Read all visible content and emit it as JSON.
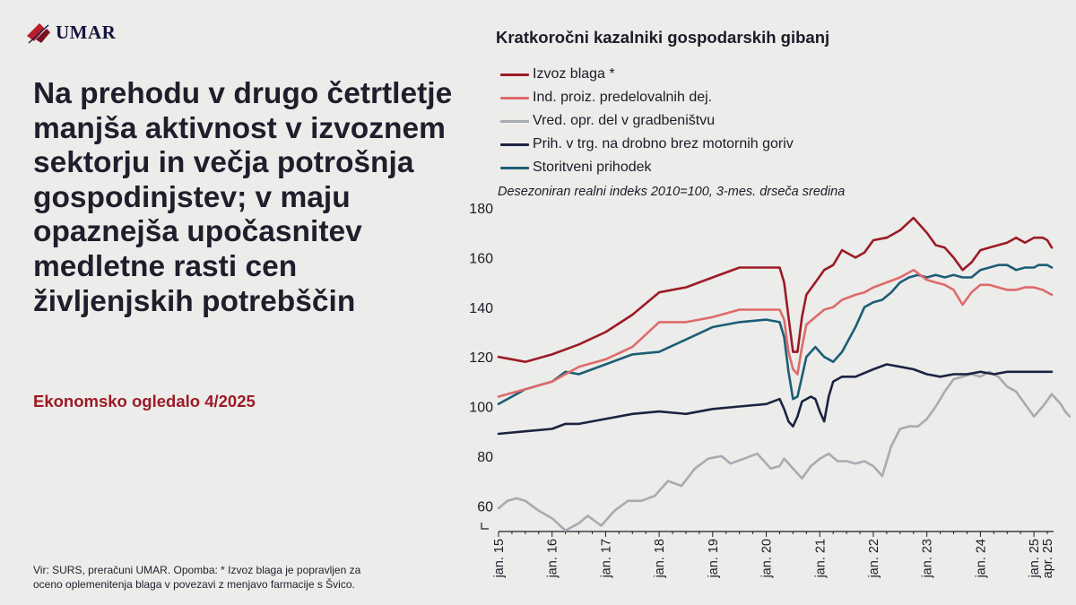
{
  "brand": {
    "logo_text": "UMAR"
  },
  "headline": "Na prehodu v drugo četrtletje manjša aktivnost v izvoznem sektorju in večja potrošnja gospodinjstev; v maju opaznejša upočasnitev medletne rasti cen življenjskih potrebščin",
  "subtitle": "Ekonomsko ogledalo 4/2025",
  "source": {
    "line1": "Vir: SURS, preračuni UMAR.  Opomba: * Izvoz blaga je popravljen za",
    "line2": "oceno oplemenitenja blaga v povezavi z menjavo farmacije s Švico."
  },
  "colors": {
    "izvoz": "#9b1b26",
    "ind": "#de6b6b",
    "vred": "#a7abb2",
    "prih": "#1c2342",
    "stor": "#1d5d75",
    "logo_red": "#b81e2d"
  },
  "chart_data": {
    "type": "line",
    "title": "Kratkoročni kazalniki gospodarskih gibanj",
    "note": "Desezoniran realni indeks 2010=100, 3-mes. drseča sredina",
    "ylim": [
      50,
      180
    ],
    "y_ticks": [
      60,
      80,
      100,
      120,
      140,
      160,
      180
    ],
    "x_start": "2015-01",
    "x_end": "2025-04",
    "x_tick_labels": [
      "jan. 15",
      "jan. 16",
      "jan. 17",
      "jan. 18",
      "jan. 19",
      "jan. 20",
      "jan. 21",
      "jan. 22",
      "jan. 23",
      "jan. 24",
      "jan. 25",
      "apr. 25"
    ],
    "grid": false,
    "legend_position": "top-left",
    "series": [
      {
        "key": "izvoz",
        "name": "Izvoz blaga *",
        "points": [
          [
            0,
            120
          ],
          [
            6,
            118
          ],
          [
            12,
            121
          ],
          [
            18,
            125
          ],
          [
            24,
            130
          ],
          [
            30,
            137
          ],
          [
            36,
            146
          ],
          [
            42,
            148
          ],
          [
            48,
            152
          ],
          [
            54,
            156
          ],
          [
            60,
            156
          ],
          [
            63,
            156
          ],
          [
            64,
            150
          ],
          [
            65,
            136
          ],
          [
            66,
            122
          ],
          [
            67,
            122
          ],
          [
            68,
            136
          ],
          [
            69,
            145
          ],
          [
            71,
            150
          ],
          [
            73,
            155
          ],
          [
            75,
            157
          ],
          [
            77,
            163
          ],
          [
            80,
            160
          ],
          [
            82,
            162
          ],
          [
            84,
            167
          ],
          [
            87,
            168
          ],
          [
            90,
            171
          ],
          [
            93,
            176
          ],
          [
            96,
            170
          ],
          [
            98,
            165
          ],
          [
            100,
            164
          ],
          [
            102,
            160
          ],
          [
            104,
            155
          ],
          [
            106,
            158
          ],
          [
            108,
            163
          ],
          [
            110,
            164
          ],
          [
            112,
            165
          ],
          [
            114,
            166
          ],
          [
            116,
            168
          ],
          [
            118,
            166
          ],
          [
            120,
            168
          ],
          [
            122,
            168
          ],
          [
            123,
            167
          ],
          [
            124,
            164
          ]
        ]
      },
      {
        "key": "ind",
        "name": "Ind. proiz. predelovalnih dej.",
        "points": [
          [
            0,
            104
          ],
          [
            6,
            107
          ],
          [
            12,
            110
          ],
          [
            18,
            116
          ],
          [
            24,
            119
          ],
          [
            30,
            124
          ],
          [
            36,
            134
          ],
          [
            42,
            134
          ],
          [
            48,
            136
          ],
          [
            54,
            139
          ],
          [
            60,
            139
          ],
          [
            63,
            139
          ],
          [
            64,
            135
          ],
          [
            65,
            122
          ],
          [
            66,
            115
          ],
          [
            67,
            113
          ],
          [
            68,
            124
          ],
          [
            69,
            133
          ],
          [
            71,
            136
          ],
          [
            73,
            139
          ],
          [
            75,
            140
          ],
          [
            77,
            143
          ],
          [
            80,
            145
          ],
          [
            82,
            146
          ],
          [
            84,
            148
          ],
          [
            87,
            150
          ],
          [
            90,
            152
          ],
          [
            93,
            155
          ],
          [
            96,
            151
          ],
          [
            98,
            150
          ],
          [
            100,
            149
          ],
          [
            102,
            147
          ],
          [
            104,
            141
          ],
          [
            106,
            146
          ],
          [
            108,
            149
          ],
          [
            110,
            149
          ],
          [
            112,
            148
          ],
          [
            114,
            147
          ],
          [
            116,
            147
          ],
          [
            118,
            148
          ],
          [
            120,
            148
          ],
          [
            122,
            147
          ],
          [
            123,
            146
          ],
          [
            124,
            145
          ]
        ]
      },
      {
        "key": "vred",
        "name": "Vred. opr. del v gradbeništvu",
        "points": [
          [
            0,
            59
          ],
          [
            2,
            62
          ],
          [
            4,
            63
          ],
          [
            6,
            62
          ],
          [
            9,
            58
          ],
          [
            12,
            55
          ],
          [
            15,
            50
          ],
          [
            18,
            53
          ],
          [
            20,
            56
          ],
          [
            23,
            52
          ],
          [
            26,
            58
          ],
          [
            29,
            62
          ],
          [
            32,
            62
          ],
          [
            35,
            64
          ],
          [
            38,
            70
          ],
          [
            41,
            68
          ],
          [
            44,
            75
          ],
          [
            47,
            79
          ],
          [
            50,
            80
          ],
          [
            52,
            77
          ],
          [
            55,
            79
          ],
          [
            58,
            81
          ],
          [
            61,
            75
          ],
          [
            63,
            76
          ],
          [
            64,
            79
          ],
          [
            66,
            75
          ],
          [
            68,
            71
          ],
          [
            70,
            76
          ],
          [
            72,
            79
          ],
          [
            74,
            81
          ],
          [
            76,
            78
          ],
          [
            78,
            78
          ],
          [
            80,
            77
          ],
          [
            82,
            78
          ],
          [
            84,
            76
          ],
          [
            86,
            72
          ],
          [
            88,
            84
          ],
          [
            90,
            91
          ],
          [
            92,
            92
          ],
          [
            94,
            92
          ],
          [
            96,
            95
          ],
          [
            98,
            100
          ],
          [
            100,
            106
          ],
          [
            102,
            111
          ],
          [
            104,
            112
          ],
          [
            106,
            113
          ],
          [
            108,
            112
          ],
          [
            110,
            114
          ],
          [
            112,
            112
          ],
          [
            114,
            108
          ],
          [
            116,
            106
          ],
          [
            118,
            101
          ],
          [
            120,
            96
          ],
          [
            122,
            100
          ],
          [
            124,
            105
          ],
          [
            126,
            101
          ],
          [
            127,
            98
          ],
          [
            128,
            96
          ]
        ]
      },
      {
        "key": "prih",
        "name": "Prih. v trg. na drobno brez motornih goriv",
        "points": [
          [
            0,
            89
          ],
          [
            6,
            90
          ],
          [
            12,
            91
          ],
          [
            15,
            93
          ],
          [
            18,
            93
          ],
          [
            24,
            95
          ],
          [
            30,
            97
          ],
          [
            36,
            98
          ],
          [
            42,
            97
          ],
          [
            48,
            99
          ],
          [
            54,
            100
          ],
          [
            60,
            101
          ],
          [
            63,
            103
          ],
          [
            64,
            99
          ],
          [
            65,
            94
          ],
          [
            66,
            92
          ],
          [
            67,
            96
          ],
          [
            68,
            102
          ],
          [
            70,
            104
          ],
          [
            71,
            103
          ],
          [
            72,
            98
          ],
          [
            73,
            94
          ],
          [
            74,
            104
          ],
          [
            75,
            110
          ],
          [
            77,
            112
          ],
          [
            80,
            112
          ],
          [
            84,
            115
          ],
          [
            87,
            117
          ],
          [
            90,
            116
          ],
          [
            93,
            115
          ],
          [
            96,
            113
          ],
          [
            99,
            112
          ],
          [
            102,
            113
          ],
          [
            105,
            113
          ],
          [
            108,
            114
          ],
          [
            111,
            113
          ],
          [
            114,
            114
          ],
          [
            117,
            114
          ],
          [
            120,
            114
          ],
          [
            123,
            114
          ],
          [
            124,
            114
          ]
        ]
      },
      {
        "key": "stor",
        "name": "Storitveni prihodek",
        "points": [
          [
            0,
            101
          ],
          [
            6,
            107
          ],
          [
            12,
            110
          ],
          [
            15,
            114
          ],
          [
            18,
            113
          ],
          [
            24,
            117
          ],
          [
            30,
            121
          ],
          [
            36,
            122
          ],
          [
            42,
            127
          ],
          [
            48,
            132
          ],
          [
            54,
            134
          ],
          [
            60,
            135
          ],
          [
            63,
            134
          ],
          [
            64,
            128
          ],
          [
            65,
            114
          ],
          [
            66,
            103
          ],
          [
            67,
            104
          ],
          [
            68,
            112
          ],
          [
            69,
            120
          ],
          [
            71,
            124
          ],
          [
            73,
            120
          ],
          [
            75,
            118
          ],
          [
            77,
            122
          ],
          [
            80,
            132
          ],
          [
            82,
            140
          ],
          [
            84,
            142
          ],
          [
            86,
            143
          ],
          [
            88,
            146
          ],
          [
            90,
            150
          ],
          [
            92,
            152
          ],
          [
            94,
            153
          ],
          [
            96,
            152
          ],
          [
            98,
            153
          ],
          [
            100,
            152
          ],
          [
            102,
            153
          ],
          [
            104,
            152
          ],
          [
            106,
            152
          ],
          [
            108,
            155
          ],
          [
            110,
            156
          ],
          [
            112,
            157
          ],
          [
            114,
            157
          ],
          [
            116,
            155
          ],
          [
            118,
            156
          ],
          [
            120,
            156
          ],
          [
            121,
            157
          ],
          [
            122,
            157
          ],
          [
            123,
            157
          ],
          [
            124,
            156
          ]
        ]
      }
    ]
  }
}
